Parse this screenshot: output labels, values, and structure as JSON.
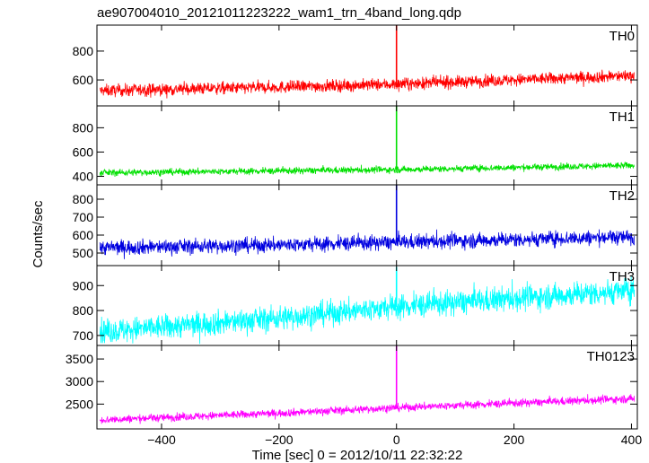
{
  "title": "ae907004010_20121011223222_wam1_trn_4band_long.qdp",
  "xlabel": "Time [sec] 0 = 2012/10/11 22:32:22",
  "ylabel": "Counts/sec",
  "chart_data": {
    "type": "line",
    "title": "ae907004010_20121011223222_wam1_trn_4band_long.qdp",
    "xlabel": "Time [sec] 0 = 2012/10/11 22:32:22",
    "ylabel": "Counts/sec",
    "xlim": [
      -510,
      410
    ],
    "x_ticks": [
      -400,
      -200,
      0,
      200,
      400
    ],
    "grid": false,
    "panels": [
      {
        "name": "TH0",
        "color": "#ff0000",
        "ylim": [
          420,
          980
        ],
        "y_ticks": [
          600,
          800
        ],
        "trend": [
          [
            -500,
            525
          ],
          [
            -200,
            550
          ],
          [
            0,
            570
          ],
          [
            400,
            630
          ]
        ],
        "noise": 38,
        "spike": {
          "x": 0,
          "y": 980
        }
      },
      {
        "name": "TH1",
        "color": "#00e000",
        "ylim": [
          330,
          980
        ],
        "y_ticks": [
          400,
          600,
          800
        ],
        "trend": [
          [
            -500,
            430
          ],
          [
            -200,
            445
          ],
          [
            0,
            455
          ],
          [
            400,
            490
          ]
        ],
        "noise": 25,
        "spike": {
          "x": 0,
          "y": 980
        }
      },
      {
        "name": "TH2",
        "color": "#0000e0",
        "ylim": [
          430,
          880
        ],
        "y_ticks": [
          500,
          600,
          700,
          800
        ],
        "trend": [
          [
            -500,
            530
          ],
          [
            -200,
            545
          ],
          [
            0,
            560
          ],
          [
            400,
            590
          ]
        ],
        "noise": 38,
        "spike": {
          "x": 0,
          "y": 880
        }
      },
      {
        "name": "TH3",
        "color": "#00ffff",
        "ylim": [
          660,
          980
        ],
        "y_ticks": [
          700,
          800,
          900
        ],
        "trend": [
          [
            -500,
            715
          ],
          [
            -200,
            770
          ],
          [
            0,
            815
          ],
          [
            400,
            880
          ]
        ],
        "noise": 45,
        "spike": {
          "x": 0,
          "y": 975
        }
      },
      {
        "name": "TH0123",
        "color": "#ff00ff",
        "ylim": [
          1950,
          3800
        ],
        "y_ticks": [
          2500,
          3000,
          3500
        ],
        "trend": [
          [
            -500,
            2150
          ],
          [
            -200,
            2300
          ],
          [
            0,
            2420
          ],
          [
            400,
            2620
          ]
        ],
        "noise": 80,
        "spike": {
          "x": 0,
          "y": 3800
        }
      }
    ]
  }
}
